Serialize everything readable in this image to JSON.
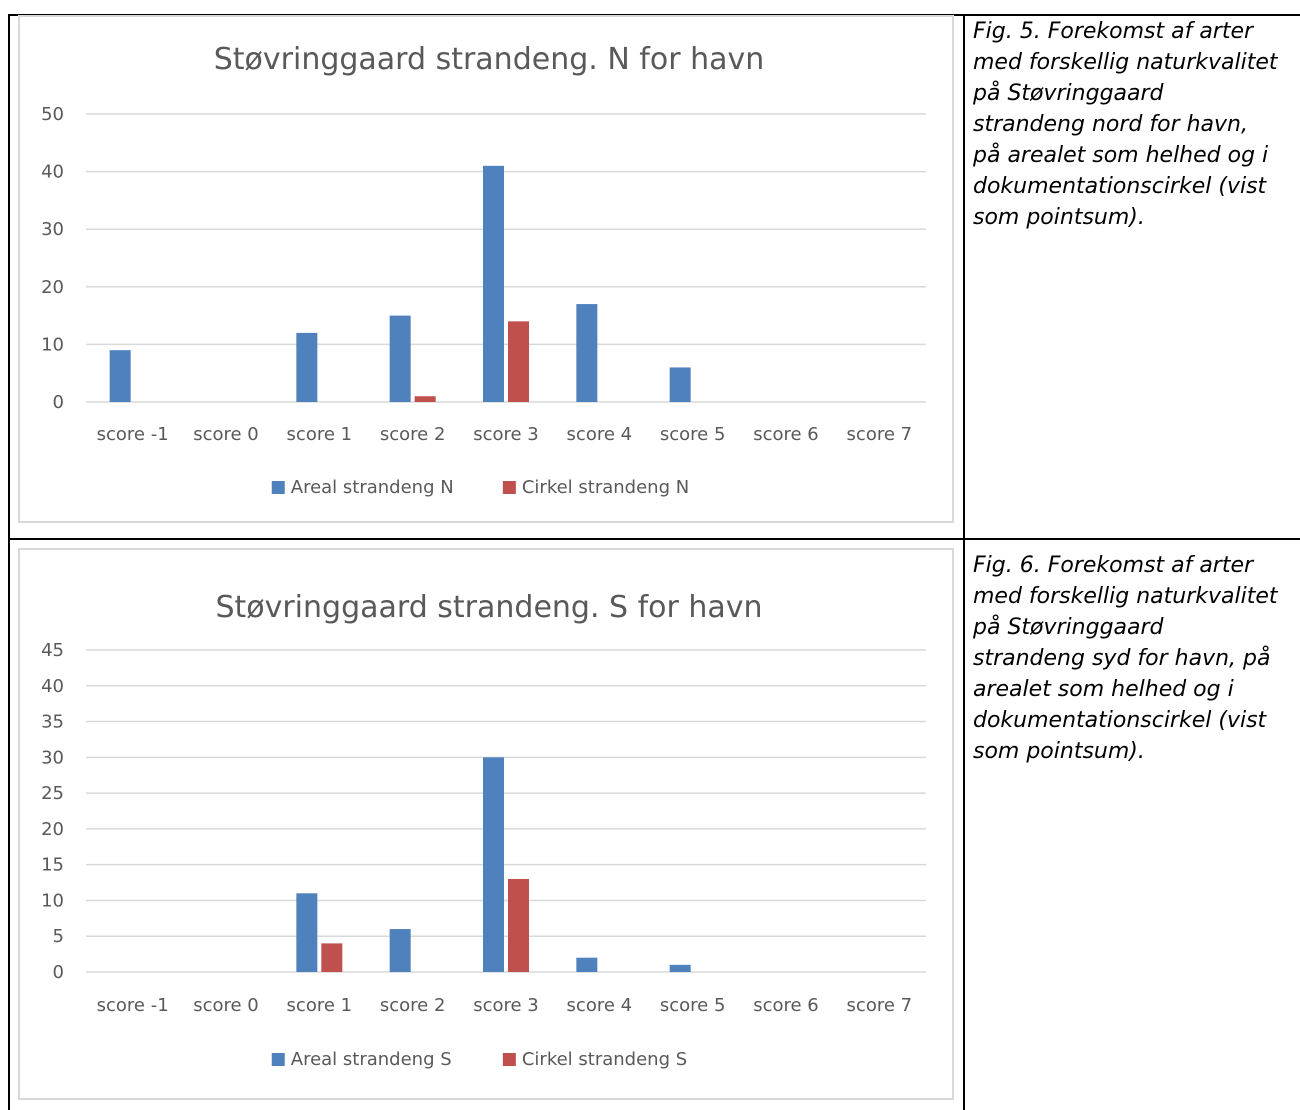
{
  "chart_data": [
    {
      "type": "bar",
      "title": "Støvringgaard strandeng. N for havn",
      "categories": [
        "score -1",
        "score 0",
        "score 1",
        "score 2",
        "score 3",
        "score 4",
        "score 5",
        "score 6",
        "score 7"
      ],
      "series": [
        {
          "name": "Areal strandeng N",
          "values": [
            9,
            0,
            12,
            15,
            41,
            17,
            6,
            0,
            0
          ],
          "color": "#4f81bd"
        },
        {
          "name": "Cirkel strandeng N",
          "values": [
            0,
            0,
            0,
            1,
            14,
            0,
            0,
            0,
            0
          ],
          "color": "#c0504d"
        }
      ],
      "ylim": [
        0,
        50
      ],
      "yticks": [
        0,
        10,
        20,
        30,
        40,
        50
      ],
      "grid": true,
      "legend": "bottom"
    },
    {
      "type": "bar",
      "title": "Støvringgaard strandeng. S for havn",
      "categories": [
        "score -1",
        "score 0",
        "score 1",
        "score 2",
        "score 3",
        "score 4",
        "score 5",
        "score 6",
        "score 7"
      ],
      "series": [
        {
          "name": "Areal strandeng S",
          "values": [
            0,
            0,
            11,
            6,
            30,
            2,
            1,
            0,
            0
          ],
          "color": "#4f81bd"
        },
        {
          "name": "Cirkel strandeng S",
          "values": [
            0,
            0,
            4,
            0,
            13,
            0,
            0,
            0,
            0
          ],
          "color": "#c0504d"
        }
      ],
      "ylim": [
        0,
        45
      ],
      "yticks": [
        0,
        5,
        10,
        15,
        20,
        25,
        30,
        35,
        40,
        45
      ],
      "grid": true,
      "legend": "bottom"
    }
  ],
  "captions": [
    "Fig. 5. Forekomst af arter\nmed forskellig naturkvalitet\npå Støvringgaard\nstrandeng nord for havn,\npå arealet som helhed og i\ndokumentationscirkel (vist\nsom pointsum).",
    "Fig. 6. Forekomst af arter\nmed forskellig naturkvalitet\npå Støvringgaard\nstrandeng syd for havn, på\narealet som helhed og i\ndokumentationscirkel (vist\nsom pointsum)."
  ]
}
